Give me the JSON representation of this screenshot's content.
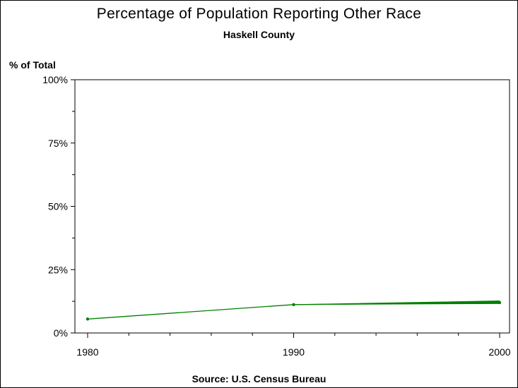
{
  "chart_data": {
    "type": "line",
    "title": "Percentage of Population Reporting Other Race",
    "subtitle": "Haskell County",
    "ylabel": "% of Total",
    "xlabel": "",
    "source": "Source: U.S. Census Bureau",
    "x": [
      1980,
      1990,
      2000
    ],
    "x_tick_labels": [
      "1980",
      "1990",
      "2000"
    ],
    "y_tick_labels": [
      "0%",
      "25%",
      "50%",
      "75%",
      "100%"
    ],
    "y_ticks": [
      0,
      25,
      50,
      75,
      100
    ],
    "xlim": [
      1980,
      2000
    ],
    "ylim": [
      0,
      100
    ],
    "grid": false,
    "series": [
      {
        "values": [
          5.5,
          11.2,
          12.0
        ],
        "color": "#008000"
      }
    ]
  }
}
